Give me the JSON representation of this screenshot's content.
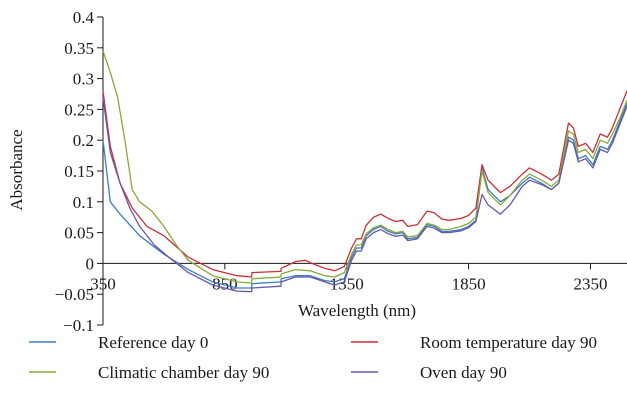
{
  "chart_data": {
    "type": "line",
    "title": "",
    "xlabel": "Wavelength (nm)",
    "ylabel": "Absorbance",
    "xlim": [
      350,
      2500
    ],
    "ylim": [
      -0.1,
      0.4
    ],
    "x_ticks": [
      350,
      850,
      1350,
      1850,
      2350
    ],
    "x_tick_labels": [
      "350",
      "850",
      "1350",
      "1850",
      "2350"
    ],
    "y_ticks": [
      -0.1,
      -0.05,
      0,
      0.05,
      0.1,
      0.15,
      0.2,
      0.25,
      0.3,
      0.35,
      0.4
    ],
    "y_tick_labels": [
      "−0.1",
      "−0.05",
      "0",
      "0.05",
      "0.1",
      "0.15",
      "0.2",
      "0.25",
      "0.3",
      "0.35",
      "0.4"
    ],
    "grid": false,
    "legend_position": "bottom",
    "series": [
      {
        "name": "Reference day 0",
        "color": "#3a7dc2",
        "points": [
          [
            350,
            0.2
          ],
          [
            380,
            0.1
          ],
          [
            420,
            0.08
          ],
          [
            500,
            0.045
          ],
          [
            600,
            0.015
          ],
          [
            700,
            -0.01
          ],
          [
            800,
            -0.03
          ],
          [
            900,
            -0.04
          ],
          [
            960,
            -0.04
          ],
          [
            961,
            -0.033
          ],
          [
            1080,
            -0.03
          ],
          [
            1081,
            -0.025
          ],
          [
            1140,
            -0.02
          ],
          [
            1200,
            -0.02
          ],
          [
            1260,
            -0.028
          ],
          [
            1300,
            -0.03
          ],
          [
            1340,
            -0.025
          ],
          [
            1370,
            0.01
          ],
          [
            1390,
            0.025
          ],
          [
            1410,
            0.025
          ],
          [
            1430,
            0.045
          ],
          [
            1460,
            0.055
          ],
          [
            1490,
            0.06
          ],
          [
            1520,
            0.052
          ],
          [
            1550,
            0.048
          ],
          [
            1580,
            0.05
          ],
          [
            1600,
            0.04
          ],
          [
            1640,
            0.042
          ],
          [
            1680,
            0.063
          ],
          [
            1710,
            0.06
          ],
          [
            1740,
            0.052
          ],
          [
            1770,
            0.052
          ],
          [
            1820,
            0.055
          ],
          [
            1850,
            0.06
          ],
          [
            1880,
            0.07
          ],
          [
            1905,
            0.155
          ],
          [
            1930,
            0.12
          ],
          [
            1980,
            0.1
          ],
          [
            2020,
            0.11
          ],
          [
            2070,
            0.13
          ],
          [
            2100,
            0.14
          ],
          [
            2150,
            0.13
          ],
          [
            2190,
            0.12
          ],
          [
            2220,
            0.13
          ],
          [
            2260,
            0.205
          ],
          [
            2280,
            0.2
          ],
          [
            2300,
            0.17
          ],
          [
            2330,
            0.175
          ],
          [
            2360,
            0.16
          ],
          [
            2390,
            0.19
          ],
          [
            2420,
            0.185
          ],
          [
            2440,
            0.2
          ],
          [
            2470,
            0.23
          ],
          [
            2500,
            0.26
          ]
        ]
      },
      {
        "name": "Room temperature day 90",
        "color": "#c8303a",
        "points": [
          [
            350,
            0.28
          ],
          [
            380,
            0.19
          ],
          [
            420,
            0.13
          ],
          [
            470,
            0.09
          ],
          [
            530,
            0.06
          ],
          [
            600,
            0.045
          ],
          [
            700,
            0.01
          ],
          [
            800,
            -0.01
          ],
          [
            900,
            -0.02
          ],
          [
            960,
            -0.022
          ],
          [
            961,
            -0.015
          ],
          [
            1080,
            -0.013
          ],
          [
            1081,
            -0.008
          ],
          [
            1140,
            0.003
          ],
          [
            1180,
            0.005
          ],
          [
            1220,
            -0.002
          ],
          [
            1260,
            -0.008
          ],
          [
            1300,
            -0.012
          ],
          [
            1340,
            -0.005
          ],
          [
            1370,
            0.025
          ],
          [
            1390,
            0.04
          ],
          [
            1410,
            0.04
          ],
          [
            1430,
            0.062
          ],
          [
            1460,
            0.075
          ],
          [
            1490,
            0.08
          ],
          [
            1520,
            0.073
          ],
          [
            1550,
            0.068
          ],
          [
            1580,
            0.07
          ],
          [
            1600,
            0.06
          ],
          [
            1640,
            0.063
          ],
          [
            1680,
            0.085
          ],
          [
            1710,
            0.082
          ],
          [
            1740,
            0.072
          ],
          [
            1770,
            0.07
          ],
          [
            1820,
            0.073
          ],
          [
            1850,
            0.078
          ],
          [
            1880,
            0.09
          ],
          [
            1905,
            0.16
          ],
          [
            1930,
            0.135
          ],
          [
            1980,
            0.115
          ],
          [
            2020,
            0.125
          ],
          [
            2070,
            0.145
          ],
          [
            2100,
            0.155
          ],
          [
            2150,
            0.145
          ],
          [
            2190,
            0.135
          ],
          [
            2220,
            0.145
          ],
          [
            2260,
            0.228
          ],
          [
            2280,
            0.22
          ],
          [
            2300,
            0.19
          ],
          [
            2330,
            0.195
          ],
          [
            2360,
            0.18
          ],
          [
            2390,
            0.21
          ],
          [
            2420,
            0.205
          ],
          [
            2440,
            0.22
          ],
          [
            2470,
            0.25
          ],
          [
            2500,
            0.28
          ]
        ]
      },
      {
        "name": "Climatic chamber day 90",
        "color": "#8aa83a",
        "points": [
          [
            350,
            0.345
          ],
          [
            380,
            0.31
          ],
          [
            410,
            0.27
          ],
          [
            440,
            0.2
          ],
          [
            470,
            0.12
          ],
          [
            500,
            0.1
          ],
          [
            550,
            0.085
          ],
          [
            600,
            0.06
          ],
          [
            650,
            0.03
          ],
          [
            700,
            0.005
          ],
          [
            800,
            -0.02
          ],
          [
            900,
            -0.03
          ],
          [
            960,
            -0.032
          ],
          [
            961,
            -0.025
          ],
          [
            1080,
            -0.022
          ],
          [
            1081,
            -0.017
          ],
          [
            1140,
            -0.01
          ],
          [
            1200,
            -0.012
          ],
          [
            1260,
            -0.02
          ],
          [
            1300,
            -0.022
          ],
          [
            1340,
            -0.015
          ],
          [
            1370,
            0.015
          ],
          [
            1390,
            0.03
          ],
          [
            1410,
            0.03
          ],
          [
            1430,
            0.048
          ],
          [
            1460,
            0.058
          ],
          [
            1490,
            0.062
          ],
          [
            1520,
            0.055
          ],
          [
            1550,
            0.05
          ],
          [
            1580,
            0.052
          ],
          [
            1600,
            0.043
          ],
          [
            1640,
            0.045
          ],
          [
            1680,
            0.065
          ],
          [
            1710,
            0.062
          ],
          [
            1740,
            0.055
          ],
          [
            1770,
            0.055
          ],
          [
            1820,
            0.06
          ],
          [
            1850,
            0.065
          ],
          [
            1880,
            0.075
          ],
          [
            1905,
            0.15
          ],
          [
            1930,
            0.115
          ],
          [
            1980,
            0.095
          ],
          [
            2020,
            0.11
          ],
          [
            2070,
            0.135
          ],
          [
            2100,
            0.145
          ],
          [
            2150,
            0.135
          ],
          [
            2190,
            0.125
          ],
          [
            2220,
            0.135
          ],
          [
            2260,
            0.215
          ],
          [
            2280,
            0.21
          ],
          [
            2300,
            0.18
          ],
          [
            2330,
            0.185
          ],
          [
            2360,
            0.17
          ],
          [
            2390,
            0.2
          ],
          [
            2420,
            0.195
          ],
          [
            2440,
            0.21
          ],
          [
            2470,
            0.235
          ],
          [
            2500,
            0.265
          ]
        ]
      },
      {
        "name": "Oven day 90",
        "color": "#6a58a8",
        "points": [
          [
            350,
            0.27
          ],
          [
            380,
            0.18
          ],
          [
            420,
            0.13
          ],
          [
            460,
            0.09
          ],
          [
            500,
            0.06
          ],
          [
            560,
            0.03
          ],
          [
            620,
            0.01
          ],
          [
            700,
            -0.015
          ],
          [
            800,
            -0.035
          ],
          [
            900,
            -0.045
          ],
          [
            960,
            -0.046
          ],
          [
            961,
            -0.04
          ],
          [
            1080,
            -0.037
          ],
          [
            1081,
            -0.03
          ],
          [
            1140,
            -0.022
          ],
          [
            1200,
            -0.022
          ],
          [
            1260,
            -0.03
          ],
          [
            1300,
            -0.035
          ],
          [
            1340,
            -0.03
          ],
          [
            1370,
            0.005
          ],
          [
            1390,
            0.02
          ],
          [
            1410,
            0.02
          ],
          [
            1430,
            0.04
          ],
          [
            1460,
            0.05
          ],
          [
            1490,
            0.055
          ],
          [
            1520,
            0.048
          ],
          [
            1550,
            0.044
          ],
          [
            1580,
            0.046
          ],
          [
            1600,
            0.037
          ],
          [
            1640,
            0.04
          ],
          [
            1680,
            0.06
          ],
          [
            1710,
            0.057
          ],
          [
            1740,
            0.05
          ],
          [
            1770,
            0.05
          ],
          [
            1820,
            0.053
          ],
          [
            1850,
            0.058
          ],
          [
            1880,
            0.068
          ],
          [
            1905,
            0.112
          ],
          [
            1930,
            0.095
          ],
          [
            1980,
            0.08
          ],
          [
            2020,
            0.095
          ],
          [
            2070,
            0.125
          ],
          [
            2100,
            0.135
          ],
          [
            2150,
            0.128
          ],
          [
            2190,
            0.12
          ],
          [
            2220,
            0.13
          ],
          [
            2260,
            0.2
          ],
          [
            2280,
            0.195
          ],
          [
            2300,
            0.165
          ],
          [
            2330,
            0.17
          ],
          [
            2360,
            0.155
          ],
          [
            2390,
            0.185
          ],
          [
            2420,
            0.18
          ],
          [
            2440,
            0.195
          ],
          [
            2470,
            0.225
          ],
          [
            2500,
            0.255
          ]
        ]
      }
    ]
  }
}
